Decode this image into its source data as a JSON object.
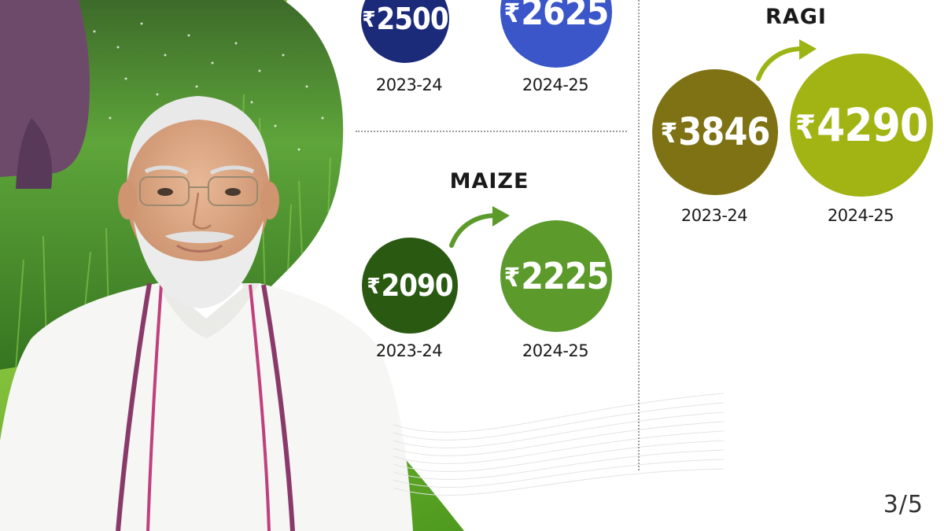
{
  "colors": {
    "paddy_prev": "#1c2a7a",
    "paddy_new": "#3a56c8",
    "maize_prev": "#2a5a12",
    "maize_new": "#5c9a2c",
    "ragi_prev": "#7e7214",
    "ragi_new": "#a2b414",
    "arrow_green": "#5c9a2c",
    "arrow_olive": "#9cb414",
    "text_dark": "#1a1a1a",
    "field_green": "#4f9a2a"
  },
  "icons": {
    "arrow": "curved-arrow-icon"
  },
  "paddy": {
    "prev_price": "2500",
    "prev_year": "2023-24",
    "new_price": "2625",
    "new_year": "2024-25"
  },
  "maize": {
    "title": "MAIZE",
    "prev_price": "2090",
    "prev_year": "2023-24",
    "new_price": "2225",
    "new_year": "2024-25"
  },
  "ragi": {
    "title": "RAGI",
    "prev_price": "3846",
    "prev_year": "2023-24",
    "new_price": "4290",
    "new_year": "2024-25"
  },
  "currency_symbol": "₹",
  "pagination": {
    "label": "3/5"
  }
}
